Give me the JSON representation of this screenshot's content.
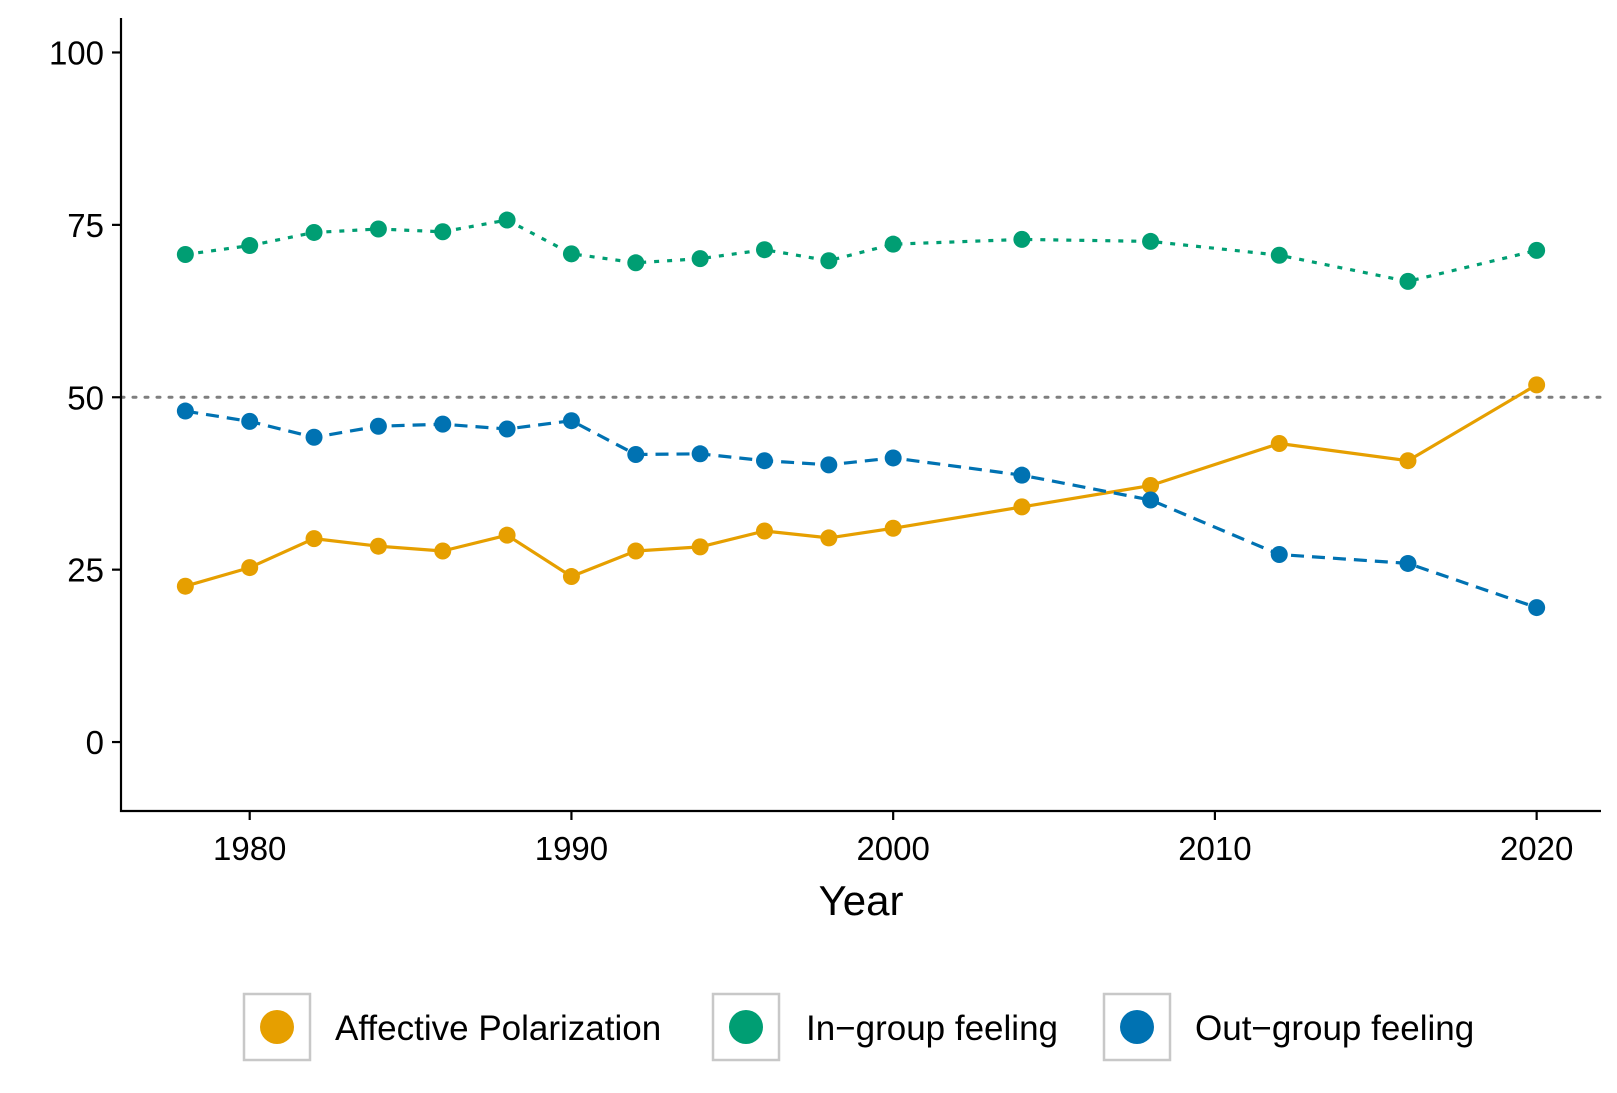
{
  "chart_data": {
    "type": "line",
    "title": "",
    "xlabel": "Year",
    "ylabel": "",
    "xlim": [
      1976,
      2022
    ],
    "ylim": [
      -10,
      105
    ],
    "x_ticks": [
      1980,
      1990,
      2000,
      2010,
      2020
    ],
    "y_ticks": [
      0,
      25,
      50,
      75,
      100
    ],
    "x_tick_labels": [
      "1980",
      "1990",
      "2000",
      "2010",
      "2020"
    ],
    "y_tick_labels": [
      "0",
      "25",
      "50",
      "75",
      "100"
    ],
    "grid": false,
    "reference_line": {
      "y": 50,
      "style": "dotted",
      "color": "#7f7f7f"
    },
    "legend_position": "bottom",
    "series": [
      {
        "name": "Affective Polarization",
        "color": "#E69F00",
        "line_style": "solid",
        "x": [
          1978,
          1980,
          1982,
          1984,
          1986,
          1988,
          1990,
          1992,
          1994,
          1996,
          1998,
          2000,
          2004,
          2008,
          2012,
          2016,
          2020
        ],
        "values": [
          22.6,
          25.3,
          29.5,
          28.4,
          27.7,
          30.0,
          24.0,
          27.7,
          28.3,
          30.6,
          29.6,
          31.0,
          34.1,
          37.2,
          43.3,
          40.8,
          51.8
        ]
      },
      {
        "name": "In−group feeling",
        "color": "#009E73",
        "line_style": "dotted",
        "x": [
          1978,
          1980,
          1982,
          1984,
          1986,
          1988,
          1990,
          1992,
          1994,
          1996,
          1998,
          2000,
          2004,
          2008,
          2012,
          2016,
          2020
        ],
        "values": [
          70.7,
          72.0,
          73.9,
          74.4,
          74.0,
          75.7,
          70.8,
          69.5,
          70.1,
          71.4,
          69.8,
          72.2,
          72.9,
          72.6,
          70.6,
          66.8,
          71.3
        ]
      },
      {
        "name": "Out−group feeling",
        "color": "#0072B2",
        "line_style": "dashed",
        "x": [
          1978,
          1980,
          1982,
          1984,
          1986,
          1988,
          1990,
          1992,
          1994,
          1996,
          1998,
          2000,
          2004,
          2008,
          2012,
          2016,
          2020
        ],
        "values": [
          48.0,
          46.5,
          44.2,
          45.8,
          46.1,
          45.4,
          46.6,
          41.7,
          41.8,
          40.8,
          40.2,
          41.2,
          38.7,
          35.1,
          27.2,
          25.9,
          19.5
        ]
      }
    ]
  }
}
